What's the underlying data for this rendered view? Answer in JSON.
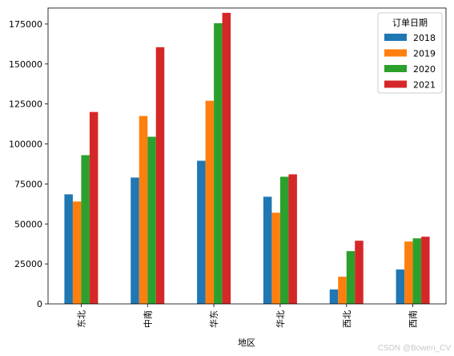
{
  "chart_data": {
    "type": "bar",
    "xlabel": "地区",
    "ylabel": "",
    "ylim": [
      0,
      185000
    ],
    "yticks": [
      0,
      25000,
      50000,
      75000,
      100000,
      125000,
      150000,
      175000
    ],
    "categories": [
      "东北",
      "中南",
      "华东",
      "华北",
      "西北",
      "西南"
    ],
    "legend": {
      "title": "订单日期",
      "placement": "top-right"
    },
    "series": [
      {
        "name": "2018",
        "color": "#1f77b4",
        "values": [
          68500,
          79000,
          89500,
          67000,
          9000,
          21500
        ]
      },
      {
        "name": "2019",
        "color": "#ff7f0e",
        "values": [
          64000,
          117500,
          127000,
          57000,
          17000,
          39000
        ]
      },
      {
        "name": "2020",
        "color": "#2ca02c",
        "values": [
          93000,
          104500,
          175500,
          79500,
          33000,
          41000
        ]
      },
      {
        "name": "2021",
        "color": "#d62728",
        "values": [
          120000,
          160500,
          182000,
          81000,
          39500,
          42000
        ]
      }
    ]
  },
  "watermark": "CSDN @Bowen_CV"
}
